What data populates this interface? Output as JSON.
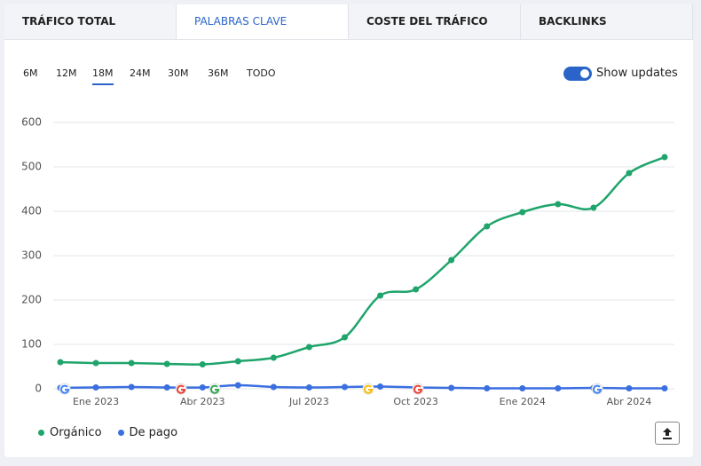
{
  "tabs": [
    "TRÁFICO TOTAL",
    "PALABRAS CLAVE",
    "COSTE DEL TRÁFICO",
    "BACKLINKS"
  ],
  "ranges": [
    "6M",
    "12M",
    "18M",
    "24M",
    "30M",
    "36M",
    "TODO"
  ],
  "toggle_label": "Show updates",
  "chart_data": {
    "type": "line",
    "categories": [
      null,
      "Ene 2023",
      null,
      null,
      "Abr 2023",
      null,
      null,
      "Jul 2023",
      null,
      null,
      "Oct 2023",
      null,
      null,
      "Ene 2024",
      null,
      null,
      "Abr 2024",
      null
    ],
    "series": [
      {
        "name": "Orgánico",
        "color": "#1fa46b",
        "values": [
          60,
          58,
          58,
          56,
          55,
          62,
          70,
          94,
          116,
          210,
          224,
          290,
          366,
          398,
          416,
          408,
          486,
          522
        ]
      },
      {
        "name": "De pago",
        "color": "#3b6fe0",
        "values": [
          2,
          3,
          4,
          3,
          3,
          8,
          4,
          3,
          4,
          5,
          3,
          2,
          1,
          1,
          1,
          2,
          1,
          1
        ]
      }
    ],
    "ylim": [
      0,
      600
    ],
    "yticks": [
      0,
      100,
      200,
      300,
      400,
      500,
      600
    ],
    "grid": true
  }
}
